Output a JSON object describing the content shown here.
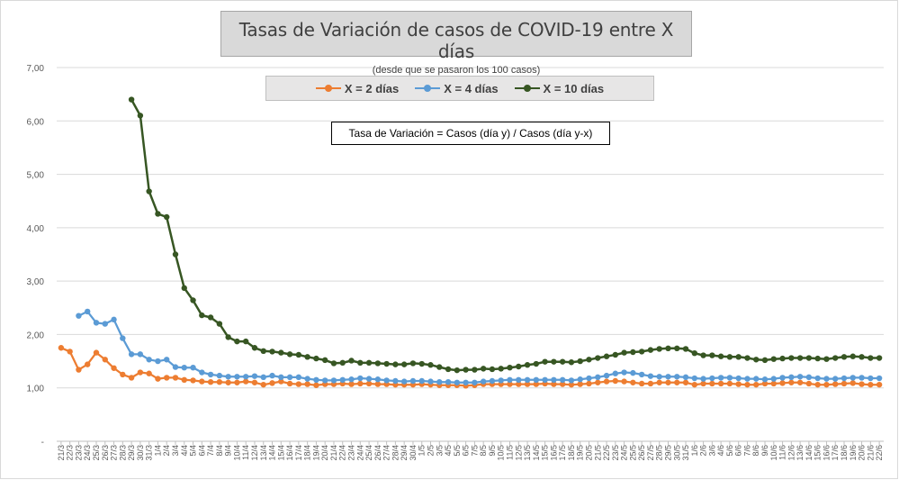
{
  "chart_data": {
    "type": "line",
    "title": "Tasas de Variación de casos de COVID-19 entre X días",
    "subtitle": "(desde que se pasaron los 100 casos)",
    "annotation": "Tasa de Variación = Casos (día y) / Casos (día y-x)",
    "ylim": [
      0,
      7
    ],
    "yticks": [
      "-",
      "1,00",
      "2,00",
      "3,00",
      "4,00",
      "5,00",
      "6,00",
      "7,00"
    ],
    "grid": "horizontal",
    "legend_position": "top-center",
    "categories": [
      "21/3",
      "22/3",
      "23/3",
      "24/3",
      "25/3",
      "26/3",
      "27/3",
      "28/3",
      "29/3",
      "30/3",
      "31/3",
      "1/4",
      "2/4",
      "3/4",
      "4/4",
      "5/4",
      "6/4",
      "7/4",
      "8/4",
      "9/4",
      "10/4",
      "11/4",
      "12/4",
      "13/4",
      "14/4",
      "15/4",
      "16/4",
      "17/4",
      "18/4",
      "19/4",
      "20/4",
      "21/4",
      "22/4",
      "23/4",
      "24/4",
      "25/4",
      "26/4",
      "27/4",
      "28/4",
      "29/4",
      "30/4",
      "1/5",
      "2/5",
      "3/5",
      "4/5",
      "5/5",
      "6/5",
      "7/5",
      "8/5",
      "9/5",
      "10/5",
      "11/5",
      "12/5",
      "13/5",
      "14/5",
      "15/5",
      "16/5",
      "17/5",
      "18/5",
      "19/5",
      "20/5",
      "21/5",
      "22/5",
      "23/5",
      "24/5",
      "25/5",
      "26/5",
      "27/5",
      "28/5",
      "29/5",
      "30/5",
      "31/5",
      "1/6",
      "2/6",
      "3/6",
      "4/6",
      "5/6",
      "6/6",
      "7/6",
      "8/6",
      "9/6",
      "10/6",
      "11/6",
      "12/6",
      "13/6",
      "14/6",
      "15/6",
      "16/6",
      "17/6",
      "18/6",
      "19/6",
      "20/6",
      "21/6",
      "22/6"
    ],
    "xlabels": [
      "21/3",
      "22/3",
      "23/3",
      "24/3",
      "25/3",
      "26/3",
      "27/3",
      "28/3",
      "29/3",
      "30/3",
      "31/3",
      "1/4",
      "2/4",
      "3/4",
      "4/4",
      "5/4",
      "6/4",
      "7/4",
      "8/4",
      "9/4",
      "10/4",
      "11/4",
      "12/4",
      "13/4",
      "14/4",
      "15/4",
      "16/4",
      "17/4",
      "18/4",
      "19/4",
      "20/4",
      "21/4",
      "22/4",
      "23/4",
      "24/4",
      "25/4",
      "26/4",
      "27/4",
      "28/4",
      "29/4",
      "30/4",
      "1/5",
      "2/5",
      "3/5",
      "4/5",
      "5/5",
      "6/5",
      "7/5",
      "8/5",
      "9/5",
      "10/5",
      "11/5",
      "12/5",
      "13/5",
      "14/5",
      "15/5",
      "16/5",
      "17/5",
      "18/5",
      "19/5",
      "20/5",
      "21/5",
      "22/5",
      "23/5",
      "24/5",
      "25/5",
      "26/5",
      "27/5",
      "28/5",
      "29/5",
      "30/5",
      "31/5",
      "1/6",
      "2/6",
      "3/6",
      "4/6",
      "5/6",
      "6/6",
      "7/6",
      "8/6",
      "9/6",
      "10/6",
      "11/6",
      "12/6",
      "13/6",
      "14/6",
      "15/6",
      "16/6",
      "17/6",
      "18/6",
      "19/6",
      "20/6",
      "21/6",
      "22/6"
    ],
    "series": [
      {
        "name": "X = 2 días",
        "color": "#ed7d31",
        "values": [
          1.75,
          1.68,
          1.34,
          1.44,
          1.66,
          1.53,
          1.37,
          1.25,
          1.19,
          1.29,
          1.27,
          1.17,
          1.19,
          1.19,
          1.15,
          1.14,
          1.12,
          1.11,
          1.11,
          1.1,
          1.1,
          1.12,
          1.1,
          1.06,
          1.09,
          1.12,
          1.08,
          1.07,
          1.07,
          1.05,
          1.07,
          1.07,
          1.08,
          1.07,
          1.08,
          1.08,
          1.07,
          1.07,
          1.06,
          1.06,
          1.06,
          1.07,
          1.06,
          1.05,
          1.05,
          1.05,
          1.04,
          1.05,
          1.07,
          1.07,
          1.07,
          1.07,
          1.07,
          1.07,
          1.07,
          1.08,
          1.07,
          1.07,
          1.06,
          1.07,
          1.08,
          1.1,
          1.12,
          1.13,
          1.12,
          1.1,
          1.08,
          1.08,
          1.1,
          1.1,
          1.1,
          1.1,
          1.06,
          1.08,
          1.08,
          1.08,
          1.08,
          1.07,
          1.06,
          1.06,
          1.08,
          1.08,
          1.09,
          1.1,
          1.1,
          1.08,
          1.06,
          1.06,
          1.07,
          1.08,
          1.09,
          1.07,
          1.06,
          1.06
        ]
      },
      {
        "name": "X = 4 días",
        "color": "#5b9bd5",
        "values": [
          null,
          null,
          2.35,
          2.43,
          2.22,
          2.2,
          2.28,
          1.93,
          1.63,
          1.63,
          1.53,
          1.5,
          1.53,
          1.39,
          1.38,
          1.38,
          1.29,
          1.25,
          1.23,
          1.21,
          1.21,
          1.21,
          1.22,
          1.2,
          1.23,
          1.2,
          1.2,
          1.2,
          1.17,
          1.15,
          1.14,
          1.14,
          1.15,
          1.16,
          1.18,
          1.17,
          1.16,
          1.14,
          1.13,
          1.12,
          1.13,
          1.13,
          1.12,
          1.11,
          1.11,
          1.1,
          1.1,
          1.1,
          1.12,
          1.13,
          1.14,
          1.15,
          1.15,
          1.15,
          1.15,
          1.15,
          1.15,
          1.15,
          1.14,
          1.16,
          1.18,
          1.2,
          1.23,
          1.27,
          1.29,
          1.28,
          1.25,
          1.22,
          1.21,
          1.21,
          1.21,
          1.2,
          1.18,
          1.17,
          1.18,
          1.19,
          1.19,
          1.18,
          1.17,
          1.17,
          1.16,
          1.17,
          1.19,
          1.2,
          1.21,
          1.2,
          1.18,
          1.17,
          1.17,
          1.18,
          1.19,
          1.19,
          1.18,
          1.18
        ]
      },
      {
        "name": "X = 10 días",
        "color": "#375623",
        "values": [
          null,
          null,
          null,
          null,
          null,
          null,
          null,
          null,
          6.4,
          6.1,
          4.68,
          4.26,
          4.2,
          3.5,
          2.87,
          2.64,
          2.36,
          2.32,
          2.2,
          1.95,
          1.87,
          1.87,
          1.75,
          1.69,
          1.68,
          1.66,
          1.63,
          1.62,
          1.58,
          1.55,
          1.52,
          1.46,
          1.47,
          1.51,
          1.47,
          1.47,
          1.46,
          1.45,
          1.44,
          1.44,
          1.46,
          1.45,
          1.43,
          1.39,
          1.35,
          1.33,
          1.34,
          1.34,
          1.36,
          1.35,
          1.36,
          1.38,
          1.4,
          1.43,
          1.45,
          1.49,
          1.49,
          1.49,
          1.48,
          1.5,
          1.53,
          1.56,
          1.59,
          1.62,
          1.66,
          1.67,
          1.68,
          1.71,
          1.73,
          1.74,
          1.74,
          1.73,
          1.65,
          1.61,
          1.61,
          1.59,
          1.58,
          1.58,
          1.56,
          1.53,
          1.52,
          1.54,
          1.55,
          1.56,
          1.56,
          1.56,
          1.55,
          1.54,
          1.56,
          1.58,
          1.59,
          1.58,
          1.56,
          1.56
        ]
      }
    ]
  }
}
